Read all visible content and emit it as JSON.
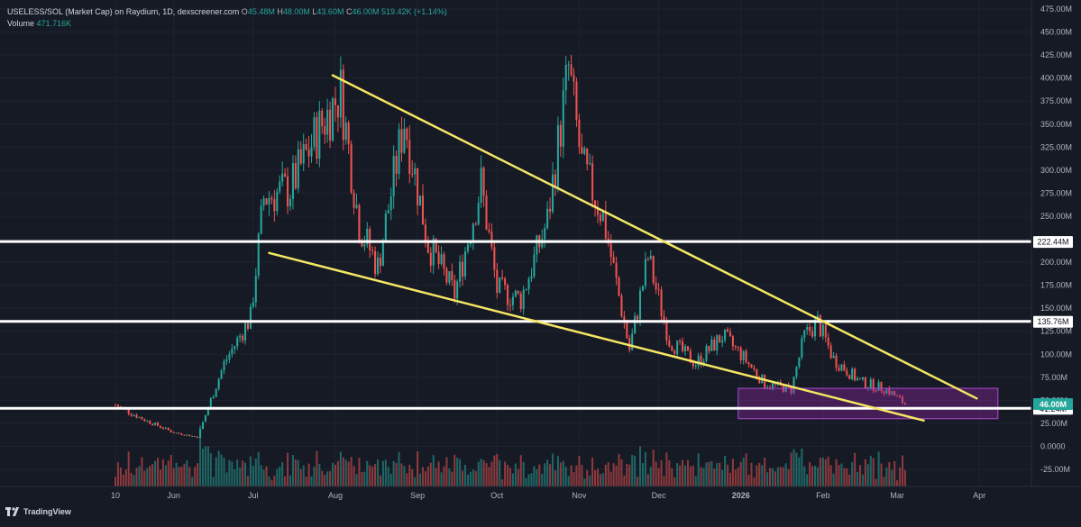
{
  "header": {
    "title": "USELESS/SOL (Market Cap) on Raydium, 1D, dexscreener.com",
    "ohlc": [
      {
        "label": "O",
        "value": "45.48M"
      },
      {
        "label": "H",
        "value": "48.00M"
      },
      {
        "label": "L",
        "value": "43.60M"
      },
      {
        "label": "C",
        "value": "46.00M"
      }
    ],
    "change": "519.42K (+1.14%)",
    "volume_label": "Volume",
    "volume_value": "471.716K"
  },
  "footer": {
    "brand": "TradingView"
  },
  "colors": {
    "background": "#161a25",
    "up": "#26a69a",
    "down": "#ef5350",
    "trendline": "#f5e663",
    "level": "#ffffff",
    "zone": "#9c27b0"
  },
  "chart_data": {
    "type": "candlestick",
    "x_ticks": [
      "10",
      "Jun",
      "Jul",
      "Aug",
      "Sep",
      "Oct",
      "Nov",
      "Dec",
      "2026",
      "Feb",
      "Mar",
      "Apr"
    ],
    "y_ticks": [
      "475.00M",
      "450.00M",
      "425.00M",
      "400.00M",
      "375.00M",
      "350.00M",
      "325.00M",
      "300.00M",
      "275.00M",
      "250.00M",
      "225.00M",
      "200.00M",
      "175.00M",
      "150.00M",
      "125.00M",
      "100.00M",
      "75.00M",
      "50.00M",
      "25.00M",
      "0.0000",
      "-25.00M"
    ],
    "ylim": [
      -35,
      480
    ],
    "price_path": [
      {
        "date": "2025-05-10",
        "value": 45
      },
      {
        "date": "2025-05-20",
        "value": 30
      },
      {
        "date": "2025-06-01",
        "value": 15
      },
      {
        "date": "2025-06-10",
        "value": 10
      },
      {
        "date": "2025-06-20",
        "value": 90
      },
      {
        "date": "2025-06-30",
        "value": 140
      },
      {
        "date": "2025-07-05",
        "value": 270
      },
      {
        "date": "2025-07-15",
        "value": 280
      },
      {
        "date": "2025-07-25",
        "value": 340
      },
      {
        "date": "2025-08-03",
        "value": 385
      },
      {
        "date": "2025-08-10",
        "value": 240
      },
      {
        "date": "2025-08-17",
        "value": 195
      },
      {
        "date": "2025-08-27",
        "value": 355
      },
      {
        "date": "2025-09-05",
        "value": 220
      },
      {
        "date": "2025-09-15",
        "value": 165
      },
      {
        "date": "2025-09-25",
        "value": 285
      },
      {
        "date": "2025-10-01",
        "value": 170
      },
      {
        "date": "2025-10-10",
        "value": 160
      },
      {
        "date": "2025-10-20",
        "value": 245
      },
      {
        "date": "2025-10-28",
        "value": 410
      },
      {
        "date": "2025-11-02",
        "value": 305
      },
      {
        "date": "2025-11-10",
        "value": 250
      },
      {
        "date": "2025-11-20",
        "value": 105
      },
      {
        "date": "2025-11-27",
        "value": 205
      },
      {
        "date": "2025-12-05",
        "value": 115
      },
      {
        "date": "2025-12-15",
        "value": 90
      },
      {
        "date": "2025-12-25",
        "value": 120
      },
      {
        "date": "2026-01-01",
        "value": 100
      },
      {
        "date": "2026-01-10",
        "value": 68
      },
      {
        "date": "2026-01-20",
        "value": 62
      },
      {
        "date": "2026-01-25",
        "value": 120
      },
      {
        "date": "2026-01-30",
        "value": 135
      },
      {
        "date": "2026-02-05",
        "value": 95
      },
      {
        "date": "2026-02-15",
        "value": 70
      },
      {
        "date": "2026-02-25",
        "value": 62
      },
      {
        "date": "2026-03-04",
        "value": 46
      }
    ],
    "horizontal_levels": [
      {
        "label": "222.44M",
        "value": 222.44
      },
      {
        "label": "135.76M",
        "value": 135.76
      },
      {
        "label": "41.24M",
        "value": 41.24
      }
    ],
    "last_price": {
      "label": "46.00M",
      "value": 46.0
    },
    "trendlines": [
      {
        "from": {
          "date": "2025-07-31",
          "value": 403
        },
        "to": {
          "date": "2026-03-31",
          "value": 52
        }
      },
      {
        "from": {
          "date": "2025-07-07",
          "value": 210
        },
        "to": {
          "date": "2026-03-11",
          "value": 28
        }
      }
    ],
    "zone": {
      "date_start": "2025-12-31",
      "date_end": "2026-04-08",
      "value_low": 30,
      "value_high": 63
    }
  }
}
